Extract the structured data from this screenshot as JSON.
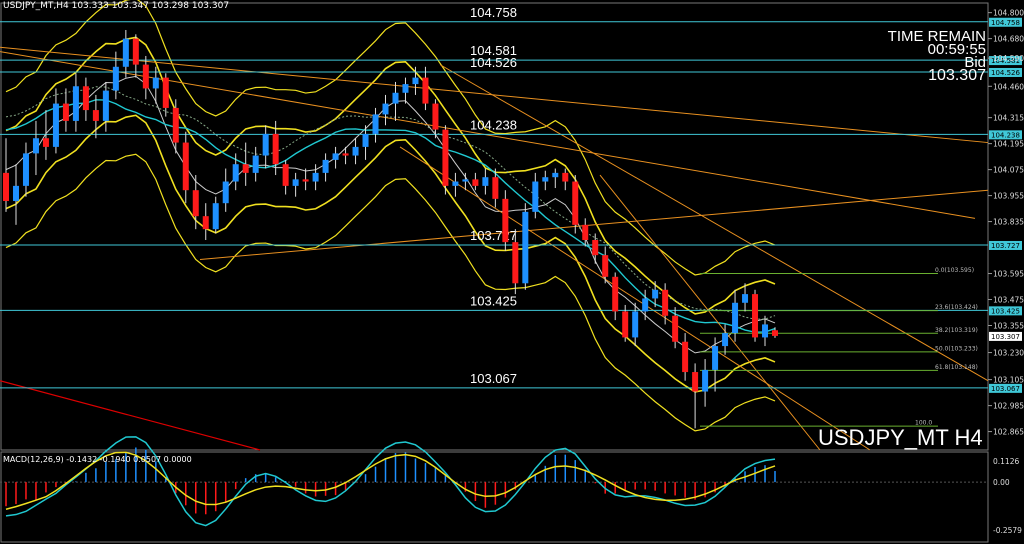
{
  "header": {
    "symbol_info": "USDJPY_MT,H4",
    "ohlc": "103.333 103.347 103.298 103.307"
  },
  "macd_header": "MACD(12,26,9) -0.1432 -0.1940 0.0507 0.0000",
  "time_remain": {
    "label": "TIME REMAIN",
    "value": "00:59:55",
    "bid_label": "Bid",
    "bid_value": "103.307"
  },
  "symbol_label": "USDJPY_MT H4",
  "colors": {
    "bull": "#1e90ff",
    "bear": "#ff1a1a",
    "hline": "#40c8d8",
    "bollinger": "#f0e020",
    "trend": "#e89020",
    "ma_cyan": "#20c8d0",
    "fib": "#6ab030"
  },
  "chart_data": {
    "type": "candlestick",
    "ylim": [
      102.78,
      104.84
    ],
    "price_axis_ticks": [
      "104.800",
      "104.680",
      "104.590",
      "104.460",
      "104.315",
      "104.195",
      "104.075",
      "103.955",
      "103.835",
      "103.595",
      "103.475",
      "103.355",
      "103.230",
      "103.105",
      "102.985",
      "102.865"
    ],
    "horizontal_levels": [
      {
        "value": 104.758,
        "label": "104.758"
      },
      {
        "value": 104.581,
        "label": "104.581"
      },
      {
        "value": 104.526,
        "label": "104.526"
      },
      {
        "value": 104.238,
        "label": "104.238"
      },
      {
        "value": 103.727,
        "label": "103.727"
      },
      {
        "value": 103.425,
        "label": "103.425"
      },
      {
        "value": 103.067,
        "label": "103.067"
      }
    ],
    "fibonacci": [
      {
        "value": 103.595,
        "label": "0.0(103.595)"
      },
      {
        "value": 103.424,
        "label": "23.6(103.424)"
      },
      {
        "value": 103.319,
        "label": "38.2(103.319)"
      },
      {
        "value": 103.233,
        "label": "50.0(103.233)"
      },
      {
        "value": 103.148,
        "label": "61.8(103.148)"
      },
      {
        "value": 102.89,
        "label": "100.0"
      }
    ],
    "current_price": "103.307",
    "macd": {
      "ylim": [
        -0.3,
        0.14
      ],
      "ticks": [
        "0.1126",
        "0.00",
        "-0.2579"
      ]
    }
  }
}
